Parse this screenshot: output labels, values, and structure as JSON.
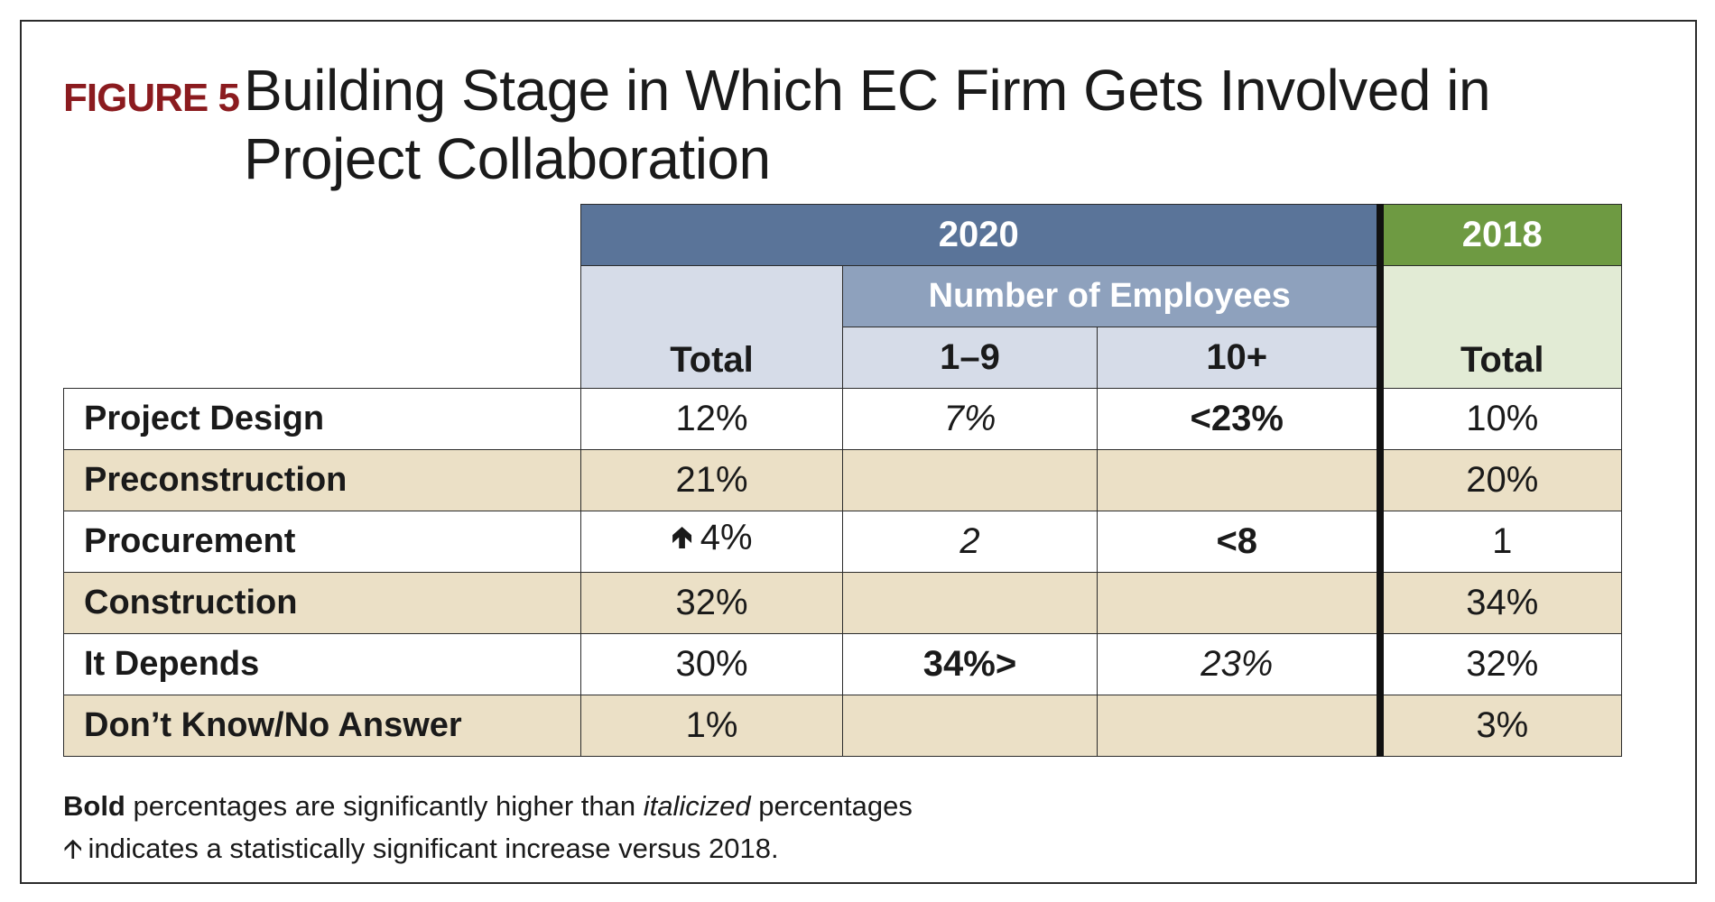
{
  "figure": {
    "label": "FIGURE 5",
    "title": "Building Stage in Which EC Firm Gets Involved in Project Collaboration"
  },
  "chart_data": {
    "type": "table",
    "title": "Building Stage in Which EC Firm Gets Involved in Project Collaboration",
    "headers": {
      "year_2020": "2020",
      "year_2018": "2018",
      "employees_group": "Number of Employees",
      "total_2020": "Total",
      "emp_small": "1–9",
      "emp_large": "10+",
      "total_2018": "Total"
    },
    "rows": [
      {
        "label": "Project Design",
        "total_2020": "12%",
        "emp_1_9": "7%",
        "emp_10_plus": "<23%",
        "total_2018": "10%",
        "total_2020_up": false,
        "emp_1_9_style": "italic",
        "emp_10_plus_style": "bold"
      },
      {
        "label": "Preconstruction",
        "total_2020": "21%",
        "emp_1_9": "",
        "emp_10_plus": "",
        "total_2018": "20%",
        "total_2020_up": false,
        "emp_1_9_style": "normal",
        "emp_10_plus_style": "normal"
      },
      {
        "label": "Procurement",
        "total_2020": "4%",
        "emp_1_9": "2",
        "emp_10_plus": "<8",
        "total_2018": "1",
        "total_2020_up": true,
        "emp_1_9_style": "italic",
        "emp_10_plus_style": "bold"
      },
      {
        "label": "Construction",
        "total_2020": "32%",
        "emp_1_9": "",
        "emp_10_plus": "",
        "total_2018": "34%",
        "total_2020_up": false,
        "emp_1_9_style": "normal",
        "emp_10_plus_style": "normal"
      },
      {
        "label": "It Depends",
        "total_2020": "30%",
        "emp_1_9": "34%>",
        "emp_10_plus": "23%",
        "total_2018": "32%",
        "total_2020_up": false,
        "emp_1_9_style": "bold",
        "emp_10_plus_style": "italic"
      },
      {
        "label": "Don’t Know/No Answer",
        "total_2020": "1%",
        "emp_1_9": "",
        "emp_10_plus": "",
        "total_2018": "3%",
        "total_2020_up": false,
        "emp_1_9_style": "normal",
        "emp_10_plus_style": "normal"
      }
    ]
  },
  "notes": {
    "line1_bold": "Bold",
    "line1_mid": " percentages are significantly higher than ",
    "line1_ital": "italicized",
    "line1_end": " percentages",
    "arrow_icon": "up-arrow-icon",
    "line2": "indicates a statistically significant increase versus 2018."
  },
  "colors": {
    "figure_label": "#8b1b1f",
    "header_2020": "#5a7499",
    "header_employees": "#8ea1bd",
    "header_2020_light": "#d6dce8",
    "header_2018": "#6e9a42",
    "header_2018_light": "#e2ebd5",
    "row_alt": "#ebe0c6"
  }
}
